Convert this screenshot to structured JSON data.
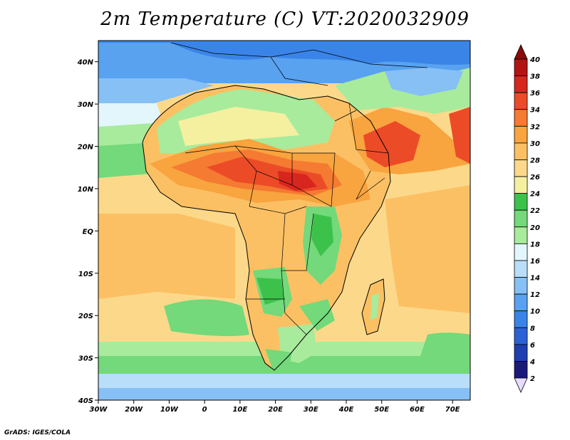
{
  "title": "2m Temperature (C) VT:2020032909",
  "credit": "GrADS: IGES/COLA",
  "map": {
    "lon_range": [
      -30,
      75
    ],
    "lat_range": [
      -40,
      45
    ],
    "lon_ticks": [
      "30W",
      "20W",
      "10W",
      "0",
      "10E",
      "20E",
      "30E",
      "40E",
      "50E",
      "60E",
      "70E"
    ],
    "lat_ticks": [
      "40N",
      "30N",
      "20N",
      "10N",
      "EQ",
      "10S",
      "20S",
      "30S",
      "40S"
    ]
  },
  "colorbar": {
    "levels": [
      "2",
      "4",
      "6",
      "8",
      "10",
      "12",
      "14",
      "16",
      "18",
      "20",
      "22",
      "24",
      "26",
      "28",
      "30",
      "32",
      "34",
      "36",
      "38",
      "40"
    ],
    "colors": [
      "#e6dcff",
      "#1a1a7a",
      "#1f3fb0",
      "#2c62d6",
      "#3a84e8",
      "#58a2f0",
      "#86c0f5",
      "#b9def9",
      "#e2f6fc",
      "#a8eb9c",
      "#73d97a",
      "#3cc24b",
      "#f5f0a0",
      "#fcd98a",
      "#fcc064",
      "#f8a43f",
      "#f57a32",
      "#ec4b27",
      "#d7261e",
      "#b31413",
      "#8c0a0a"
    ]
  }
}
